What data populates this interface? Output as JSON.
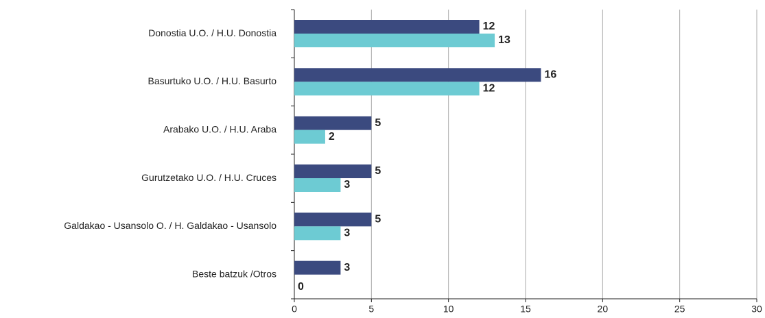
{
  "chart_data": {
    "type": "bar",
    "orientation": "horizontal",
    "categories": [
      "Donostia U.O. / H.U. Donostia",
      "Basurtuko U.O. / H.U. Basurto",
      "Arabako U.O. / H.U. Araba",
      "Gurutzetako U.O. / H.U. Cruces",
      "Galdakao - Usansolo O. / H. Galdakao - Usansolo",
      "Beste batzuk /Otros"
    ],
    "series": [
      {
        "color": "#3b4a7f",
        "values": [
          12,
          16,
          5,
          5,
          5,
          3
        ]
      },
      {
        "color": "#6dcbd3",
        "values": [
          13,
          12,
          2,
          3,
          3,
          0
        ]
      }
    ],
    "xlim": [
      0,
      30
    ],
    "xticks": [
      0,
      5,
      10,
      15,
      20,
      25,
      30
    ],
    "grid": true
  }
}
